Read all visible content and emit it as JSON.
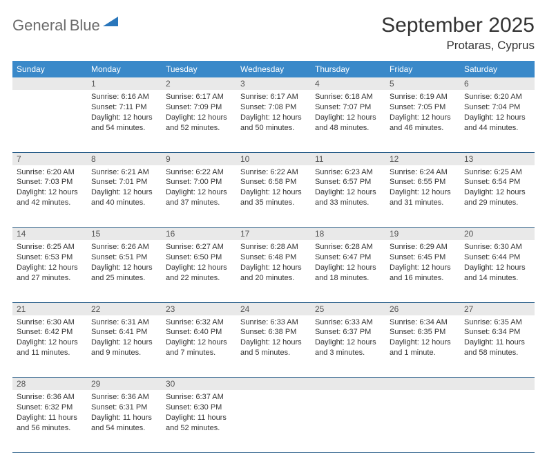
{
  "logo": {
    "word1": "General",
    "word2": "Blue"
  },
  "title": "September 2025",
  "location": "Protaras, Cyprus",
  "colors": {
    "header_bg": "#3a89c9",
    "header_text": "#ffffff",
    "daynum_bg": "#e9e9e9",
    "daynum_text": "#555555",
    "border": "#2b5f8a",
    "body_text": "#333333",
    "logo_gray": "#6b6b6b",
    "logo_blue": "#2976bb",
    "page_bg": "#ffffff"
  },
  "weekdays": [
    "Sunday",
    "Monday",
    "Tuesday",
    "Wednesday",
    "Thursday",
    "Friday",
    "Saturday"
  ],
  "weeks": [
    [
      {
        "n": "",
        "sunrise": "",
        "sunset": "",
        "daylight": ""
      },
      {
        "n": "1",
        "sunrise": "Sunrise: 6:16 AM",
        "sunset": "Sunset: 7:11 PM",
        "daylight": "Daylight: 12 hours and 54 minutes."
      },
      {
        "n": "2",
        "sunrise": "Sunrise: 6:17 AM",
        "sunset": "Sunset: 7:09 PM",
        "daylight": "Daylight: 12 hours and 52 minutes."
      },
      {
        "n": "3",
        "sunrise": "Sunrise: 6:17 AM",
        "sunset": "Sunset: 7:08 PM",
        "daylight": "Daylight: 12 hours and 50 minutes."
      },
      {
        "n": "4",
        "sunrise": "Sunrise: 6:18 AM",
        "sunset": "Sunset: 7:07 PM",
        "daylight": "Daylight: 12 hours and 48 minutes."
      },
      {
        "n": "5",
        "sunrise": "Sunrise: 6:19 AM",
        "sunset": "Sunset: 7:05 PM",
        "daylight": "Daylight: 12 hours and 46 minutes."
      },
      {
        "n": "6",
        "sunrise": "Sunrise: 6:20 AM",
        "sunset": "Sunset: 7:04 PM",
        "daylight": "Daylight: 12 hours and 44 minutes."
      }
    ],
    [
      {
        "n": "7",
        "sunrise": "Sunrise: 6:20 AM",
        "sunset": "Sunset: 7:03 PM",
        "daylight": "Daylight: 12 hours and 42 minutes."
      },
      {
        "n": "8",
        "sunrise": "Sunrise: 6:21 AM",
        "sunset": "Sunset: 7:01 PM",
        "daylight": "Daylight: 12 hours and 40 minutes."
      },
      {
        "n": "9",
        "sunrise": "Sunrise: 6:22 AM",
        "sunset": "Sunset: 7:00 PM",
        "daylight": "Daylight: 12 hours and 37 minutes."
      },
      {
        "n": "10",
        "sunrise": "Sunrise: 6:22 AM",
        "sunset": "Sunset: 6:58 PM",
        "daylight": "Daylight: 12 hours and 35 minutes."
      },
      {
        "n": "11",
        "sunrise": "Sunrise: 6:23 AM",
        "sunset": "Sunset: 6:57 PM",
        "daylight": "Daylight: 12 hours and 33 minutes."
      },
      {
        "n": "12",
        "sunrise": "Sunrise: 6:24 AM",
        "sunset": "Sunset: 6:55 PM",
        "daylight": "Daylight: 12 hours and 31 minutes."
      },
      {
        "n": "13",
        "sunrise": "Sunrise: 6:25 AM",
        "sunset": "Sunset: 6:54 PM",
        "daylight": "Daylight: 12 hours and 29 minutes."
      }
    ],
    [
      {
        "n": "14",
        "sunrise": "Sunrise: 6:25 AM",
        "sunset": "Sunset: 6:53 PM",
        "daylight": "Daylight: 12 hours and 27 minutes."
      },
      {
        "n": "15",
        "sunrise": "Sunrise: 6:26 AM",
        "sunset": "Sunset: 6:51 PM",
        "daylight": "Daylight: 12 hours and 25 minutes."
      },
      {
        "n": "16",
        "sunrise": "Sunrise: 6:27 AM",
        "sunset": "Sunset: 6:50 PM",
        "daylight": "Daylight: 12 hours and 22 minutes."
      },
      {
        "n": "17",
        "sunrise": "Sunrise: 6:28 AM",
        "sunset": "Sunset: 6:48 PM",
        "daylight": "Daylight: 12 hours and 20 minutes."
      },
      {
        "n": "18",
        "sunrise": "Sunrise: 6:28 AM",
        "sunset": "Sunset: 6:47 PM",
        "daylight": "Daylight: 12 hours and 18 minutes."
      },
      {
        "n": "19",
        "sunrise": "Sunrise: 6:29 AM",
        "sunset": "Sunset: 6:45 PM",
        "daylight": "Daylight: 12 hours and 16 minutes."
      },
      {
        "n": "20",
        "sunrise": "Sunrise: 6:30 AM",
        "sunset": "Sunset: 6:44 PM",
        "daylight": "Daylight: 12 hours and 14 minutes."
      }
    ],
    [
      {
        "n": "21",
        "sunrise": "Sunrise: 6:30 AM",
        "sunset": "Sunset: 6:42 PM",
        "daylight": "Daylight: 12 hours and 11 minutes."
      },
      {
        "n": "22",
        "sunrise": "Sunrise: 6:31 AM",
        "sunset": "Sunset: 6:41 PM",
        "daylight": "Daylight: 12 hours and 9 minutes."
      },
      {
        "n": "23",
        "sunrise": "Sunrise: 6:32 AM",
        "sunset": "Sunset: 6:40 PM",
        "daylight": "Daylight: 12 hours and 7 minutes."
      },
      {
        "n": "24",
        "sunrise": "Sunrise: 6:33 AM",
        "sunset": "Sunset: 6:38 PM",
        "daylight": "Daylight: 12 hours and 5 minutes."
      },
      {
        "n": "25",
        "sunrise": "Sunrise: 6:33 AM",
        "sunset": "Sunset: 6:37 PM",
        "daylight": "Daylight: 12 hours and 3 minutes."
      },
      {
        "n": "26",
        "sunrise": "Sunrise: 6:34 AM",
        "sunset": "Sunset: 6:35 PM",
        "daylight": "Daylight: 12 hours and 1 minute."
      },
      {
        "n": "27",
        "sunrise": "Sunrise: 6:35 AM",
        "sunset": "Sunset: 6:34 PM",
        "daylight": "Daylight: 11 hours and 58 minutes."
      }
    ],
    [
      {
        "n": "28",
        "sunrise": "Sunrise: 6:36 AM",
        "sunset": "Sunset: 6:32 PM",
        "daylight": "Daylight: 11 hours and 56 minutes."
      },
      {
        "n": "29",
        "sunrise": "Sunrise: 6:36 AM",
        "sunset": "Sunset: 6:31 PM",
        "daylight": "Daylight: 11 hours and 54 minutes."
      },
      {
        "n": "30",
        "sunrise": "Sunrise: 6:37 AM",
        "sunset": "Sunset: 6:30 PM",
        "daylight": "Daylight: 11 hours and 52 minutes."
      },
      {
        "n": "",
        "sunrise": "",
        "sunset": "",
        "daylight": ""
      },
      {
        "n": "",
        "sunrise": "",
        "sunset": "",
        "daylight": ""
      },
      {
        "n": "",
        "sunrise": "",
        "sunset": "",
        "daylight": ""
      },
      {
        "n": "",
        "sunrise": "",
        "sunset": "",
        "daylight": ""
      }
    ]
  ]
}
